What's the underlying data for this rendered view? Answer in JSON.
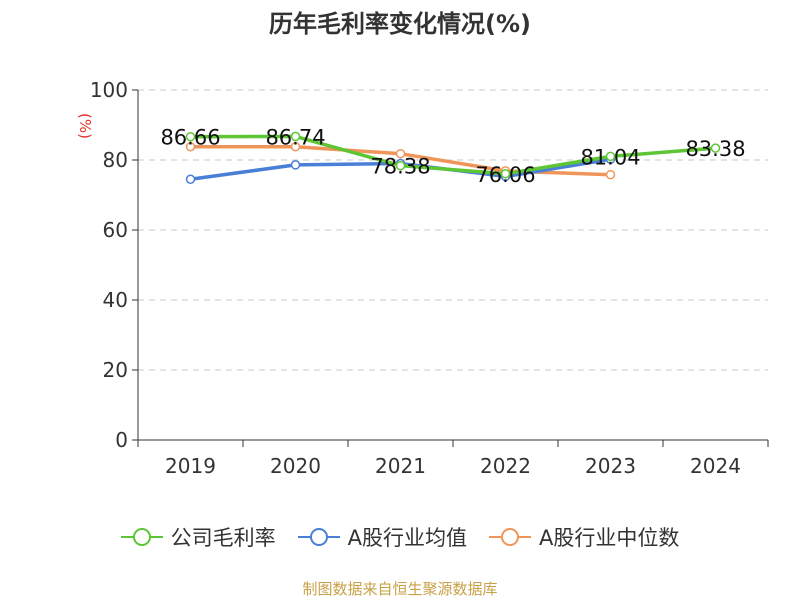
{
  "title": "历年毛利率变化情况(%)",
  "source": "制图数据来自恒生聚源数据库",
  "chart_data": {
    "type": "line",
    "title": "历年毛利率变化情况(%)",
    "ylabel": "(%)",
    "xlabel": "",
    "ylim": [
      0,
      100
    ],
    "yticks": [
      0,
      20,
      40,
      60,
      80,
      100
    ],
    "categories": [
      "2019",
      "2020",
      "2021",
      "2022",
      "2023",
      "2024"
    ],
    "grid": "horizontal dashed",
    "legend_position": "bottom",
    "series": [
      {
        "name": "公司毛利率",
        "color": "#5ec634",
        "values": [
          86.66,
          86.74,
          78.38,
          76.06,
          81.04,
          83.38
        ],
        "data_labels": [
          "86.66",
          "86.74",
          "78.38",
          "76.06",
          "81.04",
          "83.38"
        ]
      },
      {
        "name": "A股行业均值",
        "color": "#4a7fd8",
        "values": [
          74.5,
          78.6,
          79.0,
          75.3,
          80.2,
          null
        ]
      },
      {
        "name": "A股行业中位数",
        "color": "#f0955a",
        "values": [
          83.8,
          83.8,
          81.8,
          76.9,
          75.8,
          null
        ]
      }
    ]
  }
}
